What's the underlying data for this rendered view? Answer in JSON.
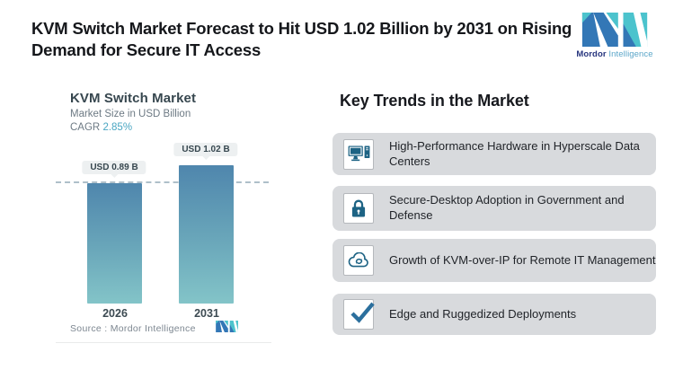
{
  "header": {
    "title": "KVM Switch Market Forecast to Hit USD 1.02 Billion by 2031 on Rising Demand for Secure IT Access",
    "brand": {
      "name_primary": "Mordor",
      "name_secondary": "Intelligence",
      "logo_blue": "#3377b6",
      "logo_teal": "#4cc3cd",
      "wordmark_dark": "#27357e",
      "wordmark_light": "#5ba6c9"
    }
  },
  "chart_data": {
    "type": "bar",
    "title": "KVM Switch Market",
    "subtitle": "Market Size in USD Billion",
    "cagr_label": "CAGR",
    "cagr_value": "2.85%",
    "categories": [
      "2026",
      "2031"
    ],
    "values": [
      0.89,
      1.02
    ],
    "value_labels": [
      "USD 0.89 B",
      "USD 1.02 B"
    ],
    "ylim": [
      0,
      1.1
    ],
    "reference_line": "dashed horizontal line at 0.89 (first bar top)",
    "legend": "none",
    "source": "Source :  Mordor Intelligence",
    "bar_gradient_top": "#4f86ad",
    "bar_gradient_bottom": "#83c4c8",
    "accent_teal": "#4aa6c2"
  },
  "trends": {
    "heading": "Key Trends in the Market",
    "card_bg": "#d8dadd",
    "icon_color": "#1d6384",
    "items": [
      {
        "icon": "desktop-computer-icon",
        "text": "High-Performance Hardware in Hyperscale Data Centers"
      },
      {
        "icon": "lock-icon",
        "text": "Secure-Desktop Adoption in Government and Defense"
      },
      {
        "icon": "cloud-sync-icon",
        "text": "Growth of KVM-over-IP for Remote IT Management"
      },
      {
        "icon": "check-icon",
        "text": "Edge and Ruggedized Deployments"
      }
    ]
  }
}
